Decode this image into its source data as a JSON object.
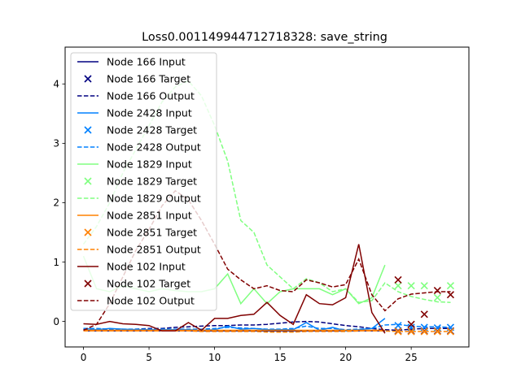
{
  "chart_data": {
    "type": "line",
    "title": "Loss0.001149944712718328: save_string",
    "xlabel": "",
    "ylabel": "",
    "xlim": [
      -1.4,
      29.4
    ],
    "ylim": [
      -0.43,
      4.62
    ],
    "x_ticks": [
      0,
      5,
      10,
      15,
      20,
      25
    ],
    "y_ticks": [
      0,
      1,
      2,
      3,
      4
    ],
    "grid": false,
    "legend_position": "upper-left",
    "series": [
      {
        "name": "Node 166",
        "color": "#000080",
        "input": {
          "x": [
            0,
            1,
            2,
            3,
            4,
            5,
            6,
            7,
            8,
            9,
            10,
            11,
            12,
            13,
            14,
            15,
            16,
            17,
            18,
            19,
            20,
            21,
            22,
            23
          ],
          "y": [
            -0.16,
            -0.16,
            -0.16,
            -0.16,
            -0.16,
            -0.16,
            -0.16,
            -0.16,
            -0.16,
            -0.16,
            -0.16,
            -0.16,
            -0.16,
            -0.16,
            -0.16,
            -0.16,
            -0.16,
            -0.16,
            -0.16,
            -0.16,
            -0.16,
            -0.16,
            -0.16,
            -0.16
          ]
        },
        "target": {
          "x": [
            24,
            25,
            26,
            27,
            28
          ],
          "y": [
            -0.16,
            -0.16,
            -0.16,
            -0.16,
            -0.16
          ]
        },
        "output": {
          "x": [
            0,
            1,
            2,
            3,
            4,
            5,
            6,
            7,
            8,
            9,
            10,
            11,
            12,
            13,
            14,
            15,
            16,
            17,
            18,
            19,
            20,
            21,
            22,
            23,
            24,
            25,
            26,
            27,
            28
          ],
          "y": [
            -0.14,
            -0.14,
            -0.14,
            -0.14,
            -0.13,
            -0.12,
            -0.12,
            -0.1,
            -0.09,
            -0.08,
            -0.07,
            -0.07,
            -0.06,
            -0.06,
            -0.05,
            -0.03,
            -0.01,
            0.0,
            -0.01,
            -0.04,
            -0.07,
            -0.09,
            -0.12,
            -0.14,
            -0.15,
            -0.13,
            -0.12,
            -0.12,
            -0.12
          ]
        }
      },
      {
        "name": "Node 2428",
        "color": "#0080ff",
        "input": {
          "x": [
            0,
            1,
            2,
            3,
            4,
            5,
            6,
            7,
            8,
            9,
            10,
            11,
            12,
            13,
            14,
            15,
            16,
            17,
            18,
            19,
            20,
            21,
            22,
            23
          ],
          "y": [
            -0.12,
            -0.14,
            -0.12,
            -0.13,
            -0.14,
            -0.14,
            -0.14,
            -0.14,
            -0.14,
            -0.15,
            -0.14,
            -0.08,
            -0.13,
            -0.12,
            -0.14,
            -0.14,
            -0.14,
            -0.02,
            -0.15,
            -0.1,
            -0.16,
            -0.14,
            -0.12,
            0.05
          ]
        },
        "target": {
          "x": [
            24,
            25,
            26,
            27,
            28
          ],
          "y": [
            -0.07,
            -0.1,
            -0.1,
            -0.11,
            -0.1
          ]
        },
        "output": {
          "x": [
            0,
            1,
            2,
            3,
            4,
            5,
            6,
            7,
            8,
            9,
            10,
            11,
            12,
            13,
            14,
            15,
            16,
            17,
            18,
            19,
            20,
            21,
            22,
            23,
            24,
            25,
            26,
            27,
            28
          ],
          "y": [
            -0.12,
            -0.12,
            -0.13,
            -0.13,
            -0.13,
            -0.13,
            -0.13,
            -0.13,
            -0.13,
            -0.13,
            -0.12,
            -0.1,
            -0.11,
            -0.12,
            -0.13,
            -0.13,
            -0.12,
            -0.08,
            -0.12,
            -0.12,
            -0.14,
            -0.13,
            -0.12,
            -0.06,
            -0.05,
            -0.08,
            -0.09,
            -0.09,
            -0.1
          ]
        }
      },
      {
        "name": "Node 1829",
        "color": "#80ff80",
        "input": {
          "x": [
            0,
            1,
            2,
            3,
            4,
            5,
            6,
            7,
            8,
            9,
            10,
            11,
            12,
            13,
            14,
            15,
            16,
            17,
            18,
            19,
            20,
            21,
            22,
            23
          ],
          "y": [
            1.1,
            0.55,
            0.5,
            0.6,
            0.55,
            0.5,
            0.55,
            0.52,
            0.5,
            0.5,
            0.55,
            0.8,
            0.3,
            0.55,
            0.3,
            0.5,
            0.55,
            0.55,
            0.55,
            0.45,
            0.55,
            0.3,
            0.4,
            0.95
          ]
        },
        "target": {
          "x": [
            24,
            25,
            26,
            27,
            28
          ],
          "y": [
            0.6,
            0.6,
            0.6,
            0.4,
            0.6
          ]
        },
        "output": {
          "x": [
            0,
            1,
            2,
            3,
            4,
            5,
            6,
            7,
            8,
            9,
            10,
            11,
            12,
            13,
            14,
            15,
            16,
            17,
            18,
            19,
            20,
            21,
            22,
            23,
            24,
            25,
            26,
            27,
            28
          ],
          "y": [
            1.3,
            1.6,
            2.0,
            2.5,
            2.9,
            3.3,
            3.7,
            3.95,
            4.05,
            3.8,
            3.3,
            2.7,
            1.7,
            1.5,
            0.95,
            0.75,
            0.55,
            0.72,
            0.65,
            0.5,
            0.55,
            0.32,
            0.35,
            0.65,
            0.5,
            0.42,
            0.37,
            0.33,
            0.32
          ]
        }
      },
      {
        "name": "Node 2851",
        "color": "#ff8000",
        "input": {
          "x": [
            0,
            1,
            2,
            3,
            4,
            5,
            6,
            7,
            8,
            9,
            10,
            11,
            12,
            13,
            14,
            15,
            16,
            17,
            18,
            19,
            20,
            21,
            22,
            23
          ],
          "y": [
            -0.15,
            -0.15,
            -0.15,
            -0.15,
            -0.15,
            -0.15,
            -0.15,
            -0.15,
            -0.15,
            -0.15,
            -0.15,
            -0.15,
            -0.15,
            -0.15,
            -0.15,
            -0.15,
            -0.15,
            -0.15,
            -0.15,
            -0.15,
            -0.15,
            -0.15,
            -0.15,
            -0.15
          ]
        },
        "target": {
          "x": [
            24,
            25,
            26,
            27,
            28
          ],
          "y": [
            -0.17,
            -0.17,
            -0.17,
            -0.17,
            -0.17
          ]
        },
        "output": {
          "x": [
            0,
            1,
            2,
            3,
            4,
            5,
            6,
            7,
            8,
            9,
            10,
            11,
            12,
            13,
            14,
            15,
            16,
            17,
            18,
            19,
            20,
            21,
            22,
            23,
            24,
            25,
            26,
            27,
            28
          ],
          "y": [
            -0.16,
            -0.16,
            -0.16,
            -0.16,
            -0.16,
            -0.16,
            -0.16,
            -0.16,
            -0.16,
            -0.17,
            -0.17,
            -0.17,
            -0.17,
            -0.17,
            -0.18,
            -0.18,
            -0.18,
            -0.17,
            -0.17,
            -0.17,
            -0.17,
            -0.16,
            -0.16,
            -0.16,
            -0.17,
            -0.17,
            -0.17,
            -0.17,
            -0.17
          ]
        }
      },
      {
        "name": "Node 102",
        "color": "#800000",
        "input": {
          "x": [
            0,
            1,
            2,
            3,
            4,
            5,
            6,
            7,
            8,
            9,
            10,
            11,
            12,
            13,
            14,
            15,
            16,
            17,
            18,
            19,
            20,
            21,
            22,
            23
          ],
          "y": [
            -0.04,
            -0.05,
            0.0,
            -0.04,
            -0.05,
            -0.07,
            -0.16,
            -0.16,
            -0.02,
            -0.15,
            0.05,
            0.05,
            0.1,
            0.12,
            0.32,
            0.1,
            -0.05,
            0.45,
            0.3,
            0.28,
            0.4,
            1.3,
            0.15,
            -0.2
          ]
        },
        "target": {
          "x": [
            24,
            25,
            26,
            27,
            28
          ],
          "y": [
            0.7,
            -0.05,
            0.12,
            0.52,
            0.45
          ]
        },
        "output": {
          "x": [
            0,
            1,
            2,
            3,
            4,
            5,
            6,
            7,
            8,
            9,
            10,
            11,
            12,
            13,
            14,
            15,
            16,
            17,
            18,
            19,
            20,
            21,
            22,
            23,
            24,
            25,
            26,
            27,
            28
          ],
          "y": [
            -0.15,
            -0.05,
            0.3,
            0.75,
            1.2,
            1.55,
            1.95,
            2.2,
            2.05,
            1.7,
            1.3,
            0.88,
            0.7,
            0.55,
            0.6,
            0.52,
            0.5,
            0.7,
            0.65,
            0.58,
            0.62,
            1.05,
            0.45,
            0.18,
            0.38,
            0.46,
            0.48,
            0.5,
            0.5
          ]
        }
      }
    ],
    "legend_entries": [
      "Node 166 Input",
      "Node 166 Target",
      "Node 166 Output",
      "Node 2428 Input",
      "Node 2428 Target",
      "Node 2428 Output",
      "Node 1829 Input",
      "Node 1829 Target",
      "Node 1829 Output",
      "Node 2851 Input",
      "Node 2851 Target",
      "Node 2851 Output",
      "Node 102 Input",
      "Node 102 Target",
      "Node 102 Output"
    ]
  }
}
